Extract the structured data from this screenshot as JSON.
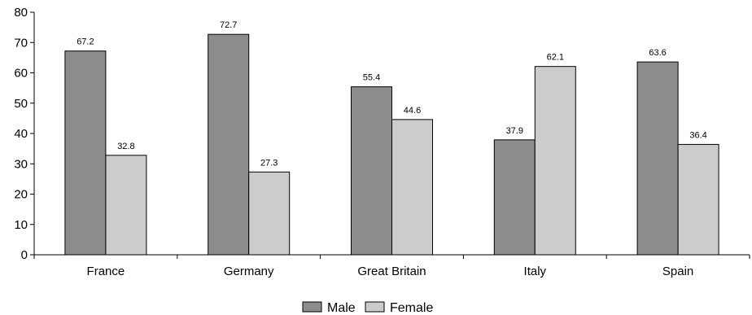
{
  "chart_data": {
    "type": "bar",
    "categories": [
      "France",
      "Germany",
      "Great Britain",
      "Italy",
      "Spain"
    ],
    "series": [
      {
        "name": "Male",
        "values": [
          67.2,
          72.7,
          55.4,
          37.9,
          63.6
        ],
        "color": "#8c8c8c"
      },
      {
        "name": "Female",
        "values": [
          32.8,
          27.3,
          44.6,
          62.1,
          36.4
        ],
        "color": "#cccccc"
      }
    ],
    "data_labels": [
      [
        "67.2",
        "72.7",
        "55.4",
        "37.9",
        "63.6"
      ],
      [
        "32.8",
        "27.3",
        "44.6",
        "62.1",
        "36.4"
      ]
    ],
    "yticks": [
      "0",
      "10",
      "20",
      "30",
      "40",
      "50",
      "60",
      "70",
      "80"
    ],
    "ylim": [
      0,
      80
    ],
    "title": "",
    "xlabel": "",
    "ylabel": "",
    "grid": false,
    "legend": "bottom-center"
  }
}
